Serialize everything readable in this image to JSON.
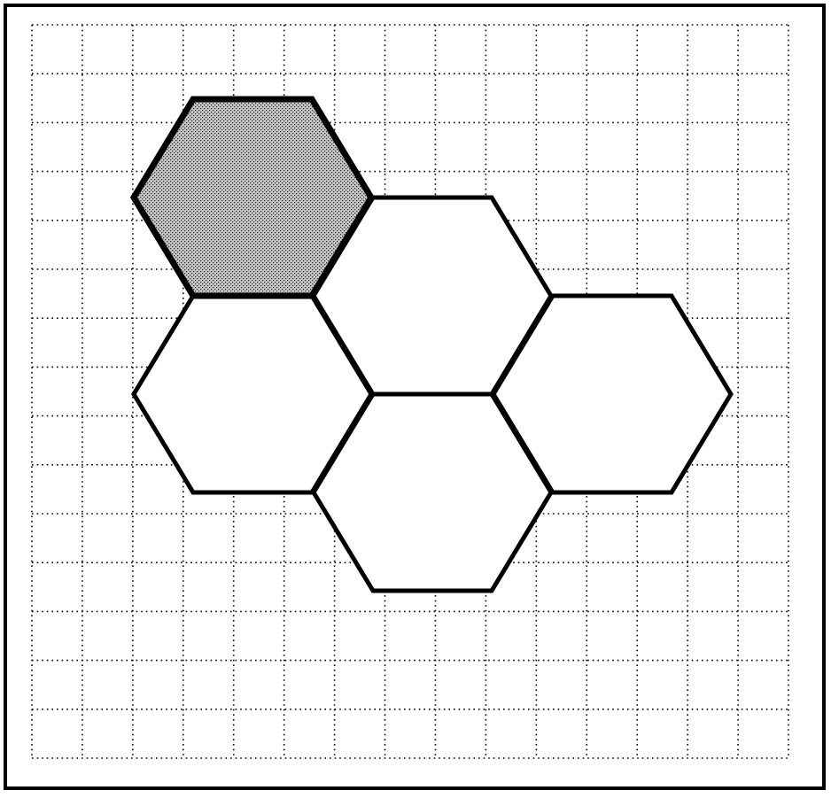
{
  "figure": {
    "grid": {
      "visible": true,
      "style": "dotted",
      "columns": 15,
      "rows": 15
    },
    "hexagons": [
      {
        "id": "hex-1",
        "col": 0,
        "row": 0,
        "fill": "shaded"
      },
      {
        "id": "hex-2",
        "col": 1,
        "row": 0,
        "fill": "white"
      },
      {
        "id": "hex-3",
        "col": 0,
        "row": 1,
        "fill": "white"
      },
      {
        "id": "hex-4",
        "col": 2,
        "row": 1,
        "fill": "white"
      },
      {
        "id": "hex-5",
        "col": 1,
        "row": 1,
        "fill": "white"
      }
    ],
    "colors": {
      "background": "#ffffff",
      "outline": "#000000",
      "grid": "#000000",
      "shaded_fill": "#b9b9b9",
      "hex_fill": "#ffffff"
    }
  }
}
